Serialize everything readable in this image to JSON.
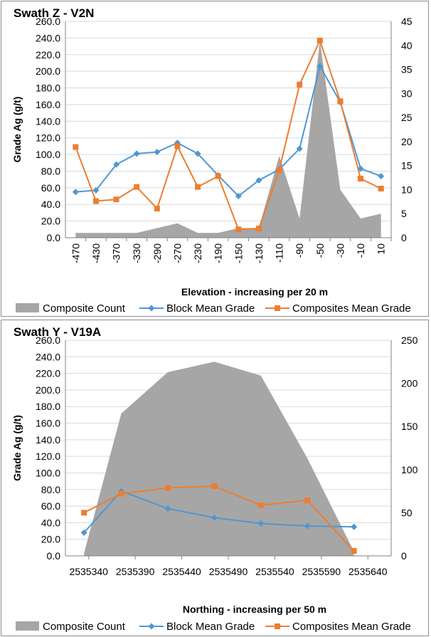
{
  "chart_data": [
    {
      "type": "line",
      "title": "Swath Z - V2N",
      "xlabel": "Elevation - increasing per 20 m",
      "ylabel": "Grade Ag (g/t)",
      "ylim": [
        0,
        260
      ],
      "y_ticks": [
        "0.0",
        "20.0",
        "40.0",
        "60.0",
        "80.0",
        "100.0",
        "120.0",
        "140.0",
        "160.0",
        "180.0",
        "200.0",
        "220.0",
        "240.0",
        "260.0"
      ],
      "y2lim": [
        0,
        45
      ],
      "y2_ticks": [
        "0",
        "5",
        "10",
        "15",
        "20",
        "25",
        "30",
        "35",
        "40",
        "45"
      ],
      "categories": [
        "-470",
        "-430",
        "-370",
        "-330",
        "-290",
        "-270",
        "-230",
        "-190",
        "-150",
        "-130",
        "-110",
        "-90",
        "-50",
        "-30",
        "-10",
        "10"
      ],
      "series": [
        {
          "name": "Composite Count",
          "kind": "area",
          "axis": "secondary",
          "color": "#a6a6a6",
          "values": [
            1,
            1,
            1,
            1,
            2,
            3,
            1,
            1,
            2,
            2,
            17,
            4,
            41,
            10,
            4,
            5
          ]
        },
        {
          "name": "Block Mean Grade",
          "kind": "line",
          "marker": "diamond",
          "axis": "primary",
          "color": "#4f97d3",
          "values": [
            55,
            57,
            88,
            101,
            103,
            114,
            101,
            75,
            50,
            69,
            82,
            107,
            206,
            163,
            83,
            74
          ]
        },
        {
          "name": "Composites Mean Grade",
          "kind": "line",
          "marker": "square",
          "axis": "primary",
          "color": "#ed7d31",
          "values": [
            109,
            44,
            46,
            61,
            35,
            110,
            61,
            74,
            10,
            11,
            81,
            184,
            237,
            164,
            71,
            59
          ]
        }
      ],
      "legend": [
        "Composite Count",
        "Block Mean Grade",
        "Composites Mean Grade"
      ],
      "legend_position": "bottom"
    },
    {
      "type": "line",
      "title": "Swath Y - V19A",
      "xlabel": "Northing - increasing per 50 m",
      "ylabel": "Grade Ag (g/t)",
      "ylim": [
        0,
        260
      ],
      "y_ticks": [
        "0.0",
        "20.0",
        "40.0",
        "60.0",
        "80.0",
        "100.0",
        "120.0",
        "140.0",
        "160.0",
        "180.0",
        "200.0",
        "220.0",
        "240.0",
        "260.0"
      ],
      "y2lim": [
        0,
        250
      ],
      "y2_ticks": [
        "0",
        "50",
        "100",
        "150",
        "200",
        "250"
      ],
      "xlim": [
        2535315,
        2535665
      ],
      "x_ticks": [
        "2535340",
        "2535390",
        "2535440",
        "2535490",
        "2535540",
        "2535590",
        "2535640"
      ],
      "series": [
        {
          "name": "Composite Count",
          "kind": "area",
          "axis": "secondary",
          "color": "#a6a6a6",
          "x": [
            2535335,
            2535375,
            2535425,
            2535475,
            2535525,
            2535575,
            2535625
          ],
          "values": [
            3,
            165,
            213,
            225,
            209,
            113,
            5
          ]
        },
        {
          "name": "Block Mean Grade",
          "kind": "line",
          "marker": "diamond",
          "axis": "primary",
          "color": "#4f97d3",
          "x": [
            2535335,
            2535375,
            2535425,
            2535475,
            2535525,
            2535575,
            2535625
          ],
          "values": [
            28,
            78,
            57,
            46,
            39,
            36,
            35
          ]
        },
        {
          "name": "Composites Mean Grade",
          "kind": "line",
          "marker": "square",
          "axis": "primary",
          "color": "#ed7d31",
          "x": [
            2535335,
            2535375,
            2535425,
            2535475,
            2535525,
            2535575,
            2535625
          ],
          "values": [
            52,
            75,
            82,
            84,
            61,
            67,
            6
          ]
        }
      ],
      "legend": [
        "Composite Count",
        "Block Mean Grade",
        "Composites Mean Grade"
      ],
      "legend_position": "bottom"
    }
  ]
}
